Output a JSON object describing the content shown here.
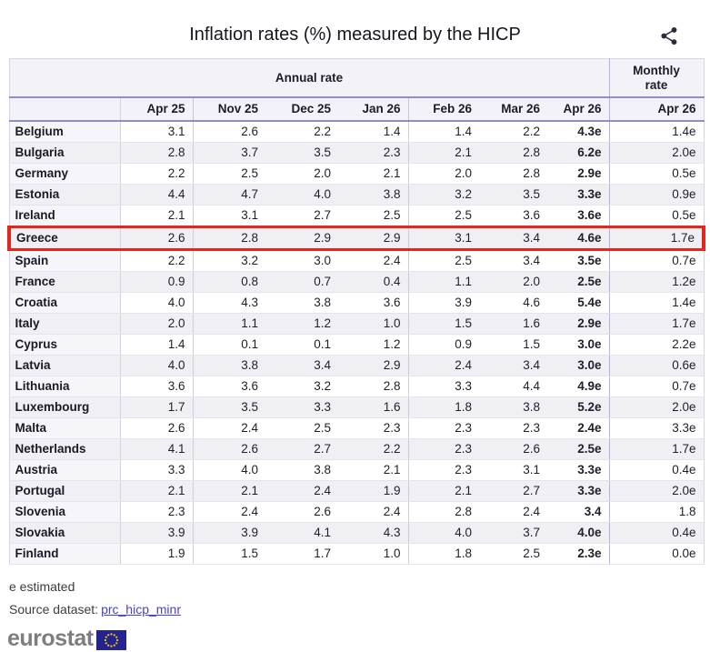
{
  "title": "Inflation rates (%) measured by the HICP",
  "table": {
    "annual_header": "Annual rate",
    "monthly_header": "Monthly rate",
    "columns": [
      "Apr 25",
      "Nov 25",
      "Dec 25",
      "Jan 26",
      "Feb 26",
      "Mar 26",
      "Apr 26"
    ],
    "monthly_column": "Apr 26",
    "rows": [
      {
        "country": "Belgium",
        "values": [
          "3.1",
          "2.6",
          "2.2",
          "1.4",
          "1.4",
          "2.2",
          "4.3e"
        ],
        "monthly": "1.4e",
        "highlighted": false
      },
      {
        "country": "Bulgaria",
        "values": [
          "2.8",
          "3.7",
          "3.5",
          "2.3",
          "2.1",
          "2.8",
          "6.2e"
        ],
        "monthly": "2.0e",
        "highlighted": false
      },
      {
        "country": "Germany",
        "values": [
          "2.2",
          "2.5",
          "2.0",
          "2.1",
          "2.0",
          "2.8",
          "2.9e"
        ],
        "monthly": "0.5e",
        "highlighted": false
      },
      {
        "country": "Estonia",
        "values": [
          "4.4",
          "4.7",
          "4.0",
          "3.8",
          "3.2",
          "3.5",
          "3.3e"
        ],
        "monthly": "0.9e",
        "highlighted": false
      },
      {
        "country": "Ireland",
        "values": [
          "2.1",
          "3.1",
          "2.7",
          "2.5",
          "2.5",
          "3.6",
          "3.6e"
        ],
        "monthly": "0.5e",
        "highlighted": false
      },
      {
        "country": "Greece",
        "values": [
          "2.6",
          "2.8",
          "2.9",
          "2.9",
          "3.1",
          "3.4",
          "4.6e"
        ],
        "monthly": "1.7e",
        "highlighted": true
      },
      {
        "country": "Spain",
        "values": [
          "2.2",
          "3.2",
          "3.0",
          "2.4",
          "2.5",
          "3.4",
          "3.5e"
        ],
        "monthly": "0.7e",
        "highlighted": false
      },
      {
        "country": "France",
        "values": [
          "0.9",
          "0.8",
          "0.7",
          "0.4",
          "1.1",
          "2.0",
          "2.5e"
        ],
        "monthly": "1.2e",
        "highlighted": false
      },
      {
        "country": "Croatia",
        "values": [
          "4.0",
          "4.3",
          "3.8",
          "3.6",
          "3.9",
          "4.6",
          "5.4e"
        ],
        "monthly": "1.4e",
        "highlighted": false
      },
      {
        "country": "Italy",
        "values": [
          "2.0",
          "1.1",
          "1.2",
          "1.0",
          "1.5",
          "1.6",
          "2.9e"
        ],
        "monthly": "1.7e",
        "highlighted": false
      },
      {
        "country": "Cyprus",
        "values": [
          "1.4",
          "0.1",
          "0.1",
          "1.2",
          "0.9",
          "1.5",
          "3.0e"
        ],
        "monthly": "2.2e",
        "highlighted": false
      },
      {
        "country": "Latvia",
        "values": [
          "4.0",
          "3.8",
          "3.4",
          "2.9",
          "2.4",
          "3.4",
          "3.0e"
        ],
        "monthly": "0.6e",
        "highlighted": false
      },
      {
        "country": "Lithuania",
        "values": [
          "3.6",
          "3.6",
          "3.2",
          "2.8",
          "3.3",
          "4.4",
          "4.9e"
        ],
        "monthly": "0.7e",
        "highlighted": false
      },
      {
        "country": "Luxembourg",
        "values": [
          "1.7",
          "3.5",
          "3.3",
          "1.6",
          "1.8",
          "3.8",
          "5.2e"
        ],
        "monthly": "2.0e",
        "highlighted": false
      },
      {
        "country": "Malta",
        "values": [
          "2.6",
          "2.4",
          "2.5",
          "2.3",
          "2.3",
          "2.3",
          "2.4e"
        ],
        "monthly": "3.3e",
        "highlighted": false
      },
      {
        "country": "Netherlands",
        "values": [
          "4.1",
          "2.6",
          "2.7",
          "2.2",
          "2.3",
          "2.6",
          "2.5e"
        ],
        "monthly": "1.7e",
        "highlighted": false
      },
      {
        "country": "Austria",
        "values": [
          "3.3",
          "4.0",
          "3.8",
          "2.1",
          "2.3",
          "3.1",
          "3.3e"
        ],
        "monthly": "0.4e",
        "highlighted": false
      },
      {
        "country": "Portugal",
        "values": [
          "2.1",
          "2.1",
          "2.4",
          "1.9",
          "2.1",
          "2.7",
          "3.3e"
        ],
        "monthly": "2.0e",
        "highlighted": false
      },
      {
        "country": "Slovenia",
        "values": [
          "2.3",
          "2.4",
          "2.6",
          "2.4",
          "2.8",
          "2.4",
          "3.4"
        ],
        "monthly": "1.8",
        "highlighted": false
      },
      {
        "country": "Slovakia",
        "values": [
          "3.9",
          "3.9",
          "4.1",
          "4.3",
          "4.0",
          "3.7",
          "4.0e"
        ],
        "monthly": "0.4e",
        "highlighted": false
      },
      {
        "country": "Finland",
        "values": [
          "1.9",
          "1.5",
          "1.7",
          "1.0",
          "1.8",
          "2.5",
          "2.3e"
        ],
        "monthly": "0.0e",
        "highlighted": false
      }
    ]
  },
  "footnote": "e estimated",
  "source": {
    "label": "Source dataset:",
    "link": "prc_hicp_minr"
  },
  "logo": {
    "text": "eurostat"
  },
  "colors": {
    "highlight_border": "#e8241c",
    "header_rule": "#8f8fc6",
    "link": "#4444c8",
    "header_bg": "#f2f2f8",
    "alt_row_bg": "#efeff4",
    "eu_flag_blue": "#24248f",
    "eu_star_yellow": "#ffcc00"
  }
}
